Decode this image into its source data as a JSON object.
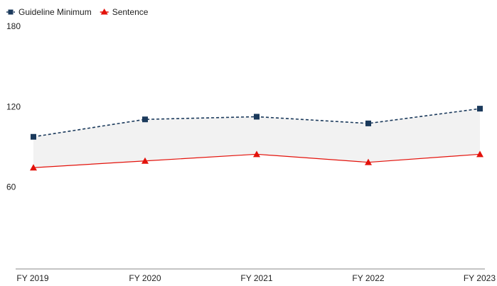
{
  "chart_data": {
    "type": "line",
    "title": "",
    "xlabel": "",
    "ylabel": "",
    "categories": [
      "FY 2019",
      "FY 2020",
      "FY 2021",
      "FY 2022",
      "FY 2023"
    ],
    "series": [
      {
        "name": "Guideline Minimum",
        "values": [
          97,
          110,
          112,
          107,
          118
        ],
        "color": "#1b3a5c",
        "line_style": "dashed",
        "marker": "square"
      },
      {
        "name": "Sentence",
        "values": [
          74,
          79,
          84,
          78,
          84
        ],
        "color": "#e3120b",
        "line_style": "solid",
        "marker": "triangle"
      }
    ],
    "shaded_band_between_series": true,
    "band_color": "#f2f2f2",
    "y_ticks": [
      60,
      120,
      180
    ],
    "ylim": [
      0,
      180
    ],
    "grid": false,
    "legend_position": "top-left"
  }
}
